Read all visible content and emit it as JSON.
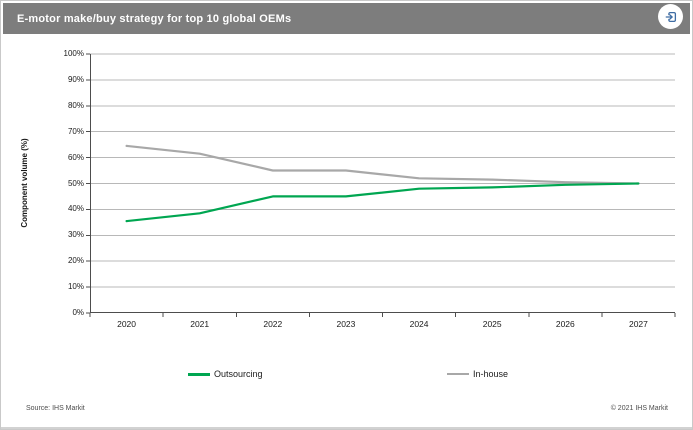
{
  "header": {
    "title": "E-motor make/buy strategy for top 10 global OEMs"
  },
  "icons": {
    "export_icon": "box-arrow-in-right"
  },
  "chart_data": {
    "type": "line",
    "title": "E-motor make/buy strategy for top 10 global OEMs",
    "categories": [
      "2020",
      "2021",
      "2022",
      "2023",
      "2024",
      "2025",
      "2026",
      "2027"
    ],
    "series": [
      {
        "name": "Outsourcing",
        "color": "#00a651",
        "values": [
          35.5,
          38.5,
          45,
          45,
          48,
          48.5,
          49.5,
          50
        ]
      },
      {
        "name": "In-house",
        "color": "#a8a8a8",
        "values": [
          64.5,
          61.5,
          55,
          55,
          52,
          51.5,
          50.5,
          50
        ]
      }
    ],
    "xlabel": "",
    "ylabel": "Component volume (%)",
    "ylim": [
      0,
      100
    ],
    "y_tick_step": 10,
    "y_tick_labels": [
      "0%",
      "10%",
      "20%",
      "30%",
      "40%",
      "50%",
      "60%",
      "70%",
      "80%",
      "90%",
      "100%"
    ],
    "grid": "horizontal",
    "legend_position": "bottom"
  },
  "legend": {
    "items": [
      {
        "label": "Outsourcing",
        "color": "#00a651"
      },
      {
        "label": "In-house",
        "color": "#a8a8a8"
      }
    ]
  },
  "footer": {
    "source": "Source: IHS Markit",
    "copyright": "© 2021 IHS Markit"
  },
  "colors": {
    "header_bg": "#7d7d7d",
    "grid_line": "#b8b8b8",
    "axis_line": "#4d4d4d",
    "icon_blue": "#3e6ca3"
  }
}
